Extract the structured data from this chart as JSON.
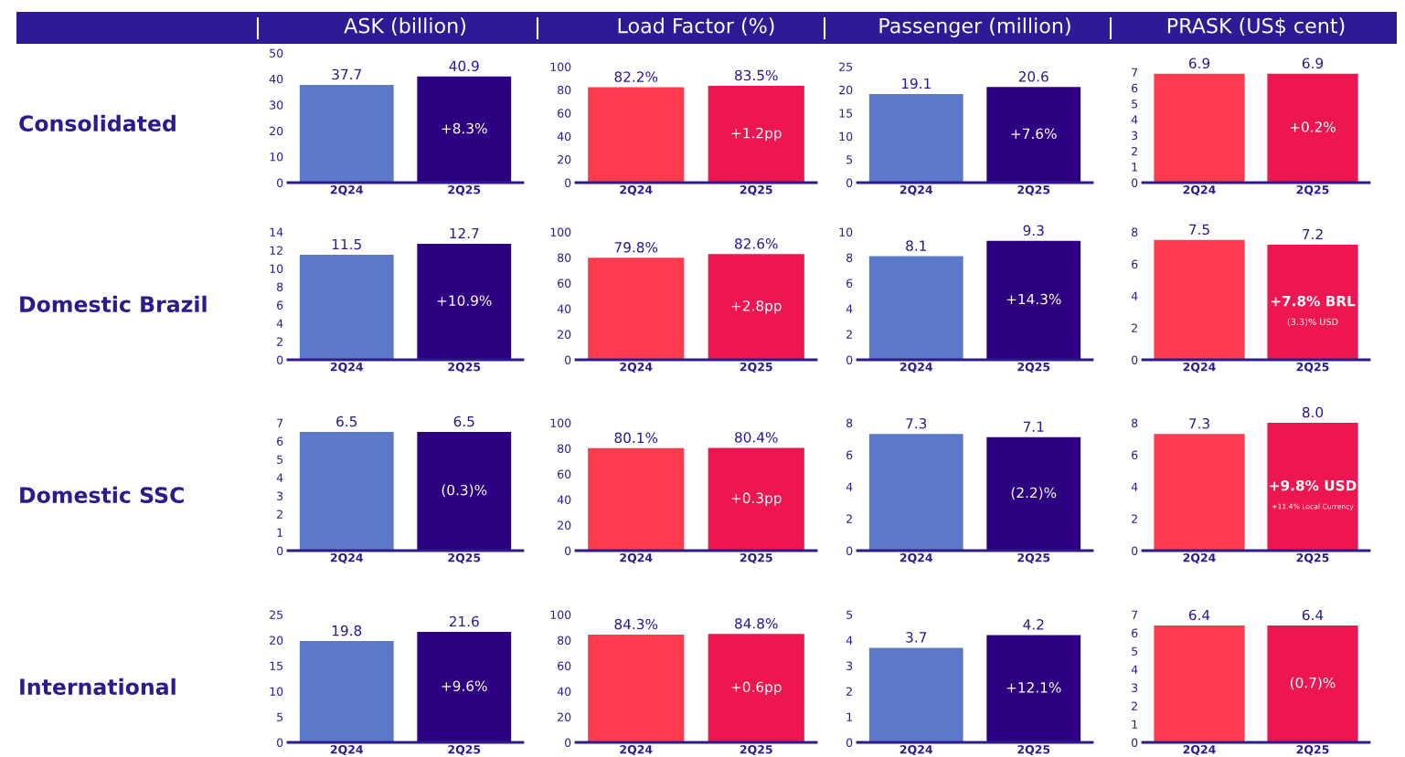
{
  "chart_data": [
    {
      "type": "bar",
      "title": "ASK (billion)",
      "ylabel": "Consolidated",
      "categories": [
        "2Q24",
        "2Q25"
      ],
      "values": [
        37.7,
        40.9
      ],
      "colors": [
        "#5b78c9",
        "#2d0082"
      ],
      "ylim": [
        0,
        50
      ],
      "yticks": [
        0,
        10,
        20,
        30,
        40,
        50
      ],
      "value_labels": [
        "37.7",
        "40.9"
      ],
      "annotations": [
        "+8.3%"
      ]
    },
    {
      "type": "bar",
      "title": "Load Factor (%)",
      "categories": [
        "2Q24",
        "2Q25"
      ],
      "values": [
        82.2,
        83.5
      ],
      "colors": [
        "#ff3a4f",
        "#ee1651"
      ],
      "ylim": [
        0,
        100
      ],
      "yticks": [
        0,
        20,
        40,
        60,
        80,
        100
      ],
      "value_labels": [
        "82.2%",
        "83.5%"
      ],
      "annotations": [
        "+1.2pp"
      ]
    },
    {
      "type": "bar",
      "title": "Passenger (million)",
      "categories": [
        "2Q24",
        "2Q25"
      ],
      "values": [
        19.1,
        20.6
      ],
      "colors": [
        "#5b78c9",
        "#2d0082"
      ],
      "ylim": [
        0,
        25
      ],
      "yticks": [
        0,
        5,
        10,
        15,
        20,
        25
      ],
      "value_labels": [
        "19.1",
        "20.6"
      ],
      "annotations": [
        "+7.6%"
      ]
    },
    {
      "type": "bar",
      "title": "PRASK (US$ cent)",
      "categories": [
        "2Q24",
        "2Q25"
      ],
      "values": [
        6.9,
        6.9
      ],
      "colors": [
        "#ff3a4f",
        "#ee1651"
      ],
      "ylim": [
        0,
        7
      ],
      "yticks": [
        0,
        1,
        2,
        3,
        4,
        5,
        6,
        7
      ],
      "value_labels": [
        "6.9",
        "6.9"
      ],
      "annotations": [
        "+0.2%"
      ]
    },
    {
      "type": "bar",
      "ylabel": "Domestic Brazil",
      "categories": [
        "2Q24",
        "2Q25"
      ],
      "values": [
        11.5,
        12.7
      ],
      "colors": [
        "#5b78c9",
        "#2d0082"
      ],
      "ylim": [
        0,
        14
      ],
      "yticks": [
        0,
        2,
        4,
        6,
        8,
        10,
        12,
        14
      ],
      "value_labels": [
        "11.5",
        "12.7"
      ],
      "annotations": [
        "+10.9%"
      ]
    },
    {
      "type": "bar",
      "categories": [
        "2Q24",
        "2Q25"
      ],
      "values": [
        79.8,
        82.6
      ],
      "colors": [
        "#ff3a4f",
        "#ee1651"
      ],
      "ylim": [
        0,
        100
      ],
      "yticks": [
        0,
        20,
        40,
        60,
        80,
        100
      ],
      "value_labels": [
        "79.8%",
        "82.6%"
      ],
      "annotations": [
        "+2.8pp"
      ]
    },
    {
      "type": "bar",
      "categories": [
        "2Q24",
        "2Q25"
      ],
      "values": [
        8.1,
        9.3
      ],
      "colors": [
        "#5b78c9",
        "#2d0082"
      ],
      "ylim": [
        0,
        10
      ],
      "yticks": [
        0,
        2,
        4,
        6,
        8,
        10
      ],
      "value_labels": [
        "8.1",
        "9.3"
      ],
      "annotations": [
        "+14.3%"
      ]
    },
    {
      "type": "bar",
      "categories": [
        "2Q24",
        "2Q25"
      ],
      "values": [
        7.5,
        7.2
      ],
      "colors": [
        "#ff3a4f",
        "#ee1651"
      ],
      "ylim": [
        0,
        8
      ],
      "yticks": [
        0,
        2,
        4,
        6,
        8
      ],
      "value_labels": [
        "7.5",
        "7.2"
      ],
      "annotations": [
        "+7.8% BRL",
        "(3.3)% USD"
      ]
    },
    {
      "type": "bar",
      "ylabel": "Domestic SSC",
      "categories": [
        "2Q24",
        "2Q25"
      ],
      "values": [
        6.5,
        6.5
      ],
      "colors": [
        "#5b78c9",
        "#2d0082"
      ],
      "ylim": [
        0,
        7
      ],
      "yticks": [
        0,
        1,
        2,
        3,
        4,
        5,
        6,
        7
      ],
      "value_labels": [
        "6.5",
        "6.5"
      ],
      "annotations": [
        "(0.3)%"
      ]
    },
    {
      "type": "bar",
      "categories": [
        "2Q24",
        "2Q25"
      ],
      "values": [
        80.1,
        80.4
      ],
      "colors": [
        "#ff3a4f",
        "#ee1651"
      ],
      "ylim": [
        0,
        100
      ],
      "yticks": [
        0,
        20,
        40,
        60,
        80,
        100
      ],
      "value_labels": [
        "80.1%",
        "80.4%"
      ],
      "annotations": [
        "+0.3pp"
      ]
    },
    {
      "type": "bar",
      "categories": [
        "2Q24",
        "2Q25"
      ],
      "values": [
        7.3,
        7.1
      ],
      "colors": [
        "#5b78c9",
        "#2d0082"
      ],
      "ylim": [
        0,
        8
      ],
      "yticks": [
        0,
        2,
        4,
        6,
        8
      ],
      "value_labels": [
        "7.3",
        "7.1"
      ],
      "annotations": [
        "(2.2)%"
      ]
    },
    {
      "type": "bar",
      "categories": [
        "2Q24",
        "2Q25"
      ],
      "values": [
        7.3,
        8.0
      ],
      "colors": [
        "#ff3a4f",
        "#ee1651"
      ],
      "ylim": [
        0,
        8
      ],
      "yticks": [
        0,
        2,
        4,
        6,
        8
      ],
      "value_labels": [
        "7.3",
        "8.0"
      ],
      "annotations": [
        "+9.8% USD",
        "+11.4% Local Currency"
      ]
    },
    {
      "type": "bar",
      "ylabel": "International",
      "categories": [
        "2Q24",
        "2Q25"
      ],
      "values": [
        19.8,
        21.6
      ],
      "colors": [
        "#5b78c9",
        "#2d0082"
      ],
      "ylim": [
        0,
        25
      ],
      "yticks": [
        0,
        5,
        10,
        15,
        20,
        25
      ],
      "value_labels": [
        "19.8",
        "21.6"
      ],
      "annotations": [
        "+9.6%"
      ]
    },
    {
      "type": "bar",
      "categories": [
        "2Q24",
        "2Q25"
      ],
      "values": [
        84.3,
        84.8
      ],
      "colors": [
        "#ff3a4f",
        "#ee1651"
      ],
      "ylim": [
        0,
        100
      ],
      "yticks": [
        0,
        20,
        40,
        60,
        80,
        100
      ],
      "value_labels": [
        "84.3%",
        "84.8%"
      ],
      "annotations": [
        "+0.6pp"
      ]
    },
    {
      "type": "bar",
      "categories": [
        "2Q24",
        "2Q25"
      ],
      "values": [
        3.7,
        4.2
      ],
      "colors": [
        "#5b78c9",
        "#2d0082"
      ],
      "ylim": [
        0,
        5
      ],
      "yticks": [
        0,
        1,
        2,
        3,
        4,
        5
      ],
      "value_labels": [
        "3.7",
        "4.2"
      ],
      "annotations": [
        "+12.1%"
      ]
    },
    {
      "type": "bar",
      "categories": [
        "2Q24",
        "2Q25"
      ],
      "values": [
        6.4,
        6.4
      ],
      "colors": [
        "#ff3a4f",
        "#ee1651"
      ],
      "ylim": [
        0,
        7
      ],
      "yticks": [
        0,
        1,
        2,
        3,
        4,
        5,
        6,
        7
      ],
      "value_labels": [
        "6.4",
        "6.4"
      ],
      "annotations": [
        "(0.7)%"
      ]
    }
  ]
}
